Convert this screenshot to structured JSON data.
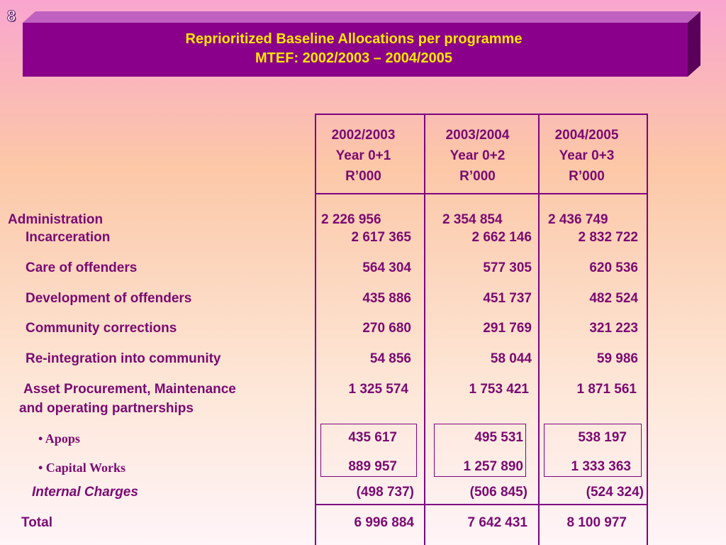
{
  "slide_number": "8",
  "title": {
    "line1": "Reprioritized Baseline Allocations per programme",
    "line2": "MTEF: 2002/2003 – 2004/2005"
  },
  "columns": [
    {
      "year": "2002/2003",
      "label": "Year 0+1",
      "unit": "R’000"
    },
    {
      "year": "2003/2004",
      "label": "Year 0+2",
      "unit": "R’000"
    },
    {
      "year": "2004/2005",
      "label": "Year 0+3",
      "unit": "R’000"
    }
  ],
  "rows": {
    "administration": {
      "label": "Administration",
      "values": [
        "2 226 956",
        "2 354 854",
        "2 436 749"
      ]
    },
    "incarceration": {
      "label": "Incarceration",
      "values": [
        "2 617 365",
        "2 662 146",
        "2 832 722"
      ]
    },
    "care": {
      "label": "Care of offenders",
      "values": [
        "564 304",
        "577 305",
        "620 536"
      ]
    },
    "development": {
      "label": "Development of offenders",
      "values": [
        "435 886",
        "451 737",
        "482 524"
      ]
    },
    "community": {
      "label": "Community corrections",
      "values": [
        "270 680",
        "291 769",
        "321 223"
      ]
    },
    "reintegration": {
      "label": "Re-integration into community",
      "values": [
        "54 856",
        "58 044",
        "59 986"
      ]
    },
    "asset": {
      "label1": "Asset Procurement, Maintenance",
      "label2": "and operating partnerships",
      "values": [
        "1 325 574",
        "1 753 421",
        "1 871 561"
      ]
    },
    "apops": {
      "label": "• Apops",
      "values": [
        "435 617",
        "495 531",
        "538 197"
      ]
    },
    "capital": {
      "label": "• Capital Works",
      "values": [
        "889 957",
        "1 257 890",
        "1 333 363"
      ]
    },
    "internal": {
      "label": "Internal Charges",
      "values": [
        "(498 737)",
        "(506 845)",
        "(524 324)"
      ]
    },
    "total": {
      "label": "Total",
      "values": [
        "6 996 884",
        "7 642 431",
        "8 100 977"
      ]
    }
  },
  "colors": {
    "banner": "#8a008a",
    "title": "#ffe600",
    "text": "#7a0a72"
  }
}
